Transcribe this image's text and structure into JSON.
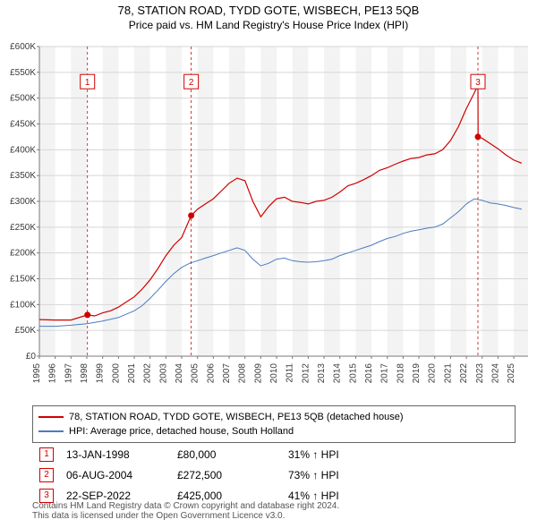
{
  "title_line1": "78, STATION ROAD, TYDD GOTE, WISBECH, PE13 5QB",
  "title_line2": "Price paid vs. HM Land Registry's House Price Index (HPI)",
  "chart": {
    "type": "line",
    "background_color": "#ffffff",
    "plot_background_bands_color": "#f3f3f3",
    "grid_color": "#e0e0e0",
    "axis_color": "#7a7a7a",
    "text_color": "#3a3a3a",
    "x_years": [
      1995,
      1996,
      1997,
      1998,
      1999,
      2000,
      2001,
      2002,
      2003,
      2004,
      2005,
      2006,
      2007,
      2008,
      2009,
      2010,
      2011,
      2012,
      2013,
      2014,
      2015,
      2016,
      2017,
      2018,
      2019,
      2020,
      2021,
      2022,
      2023,
      2024,
      2025
    ],
    "x_range": [
      1995,
      2025.9
    ],
    "xtick_step": 1,
    "xtick_fontsize": 10,
    "xtick_rotation": -90,
    "y_range": [
      0,
      600000
    ],
    "ytick_step": 50000,
    "ytick_labels": [
      "£0",
      "£50K",
      "£100K",
      "£150K",
      "£200K",
      "£250K",
      "£300K",
      "£350K",
      "£400K",
      "£450K",
      "£500K",
      "£550K",
      "£600K"
    ],
    "ytick_fontsize": 10,
    "series": [
      {
        "label": "78, STATION ROAD, TYDD GOTE, WISBECH, PE13 5QB (detached house)",
        "color": "#d00000",
        "line_width": 1.2,
        "points": [
          [
            1995.0,
            71000
          ],
          [
            1996.0,
            70000
          ],
          [
            1997.0,
            70000
          ],
          [
            1998.04,
            80000
          ],
          [
            1998.5,
            78000
          ],
          [
            1999.0,
            84000
          ],
          [
            1999.5,
            88000
          ],
          [
            2000.0,
            95000
          ],
          [
            2000.5,
            105000
          ],
          [
            2001.0,
            115000
          ],
          [
            2001.5,
            130000
          ],
          [
            2002.0,
            148000
          ],
          [
            2002.5,
            170000
          ],
          [
            2003.0,
            195000
          ],
          [
            2003.5,
            215000
          ],
          [
            2004.0,
            230000
          ],
          [
            2004.6,
            272500
          ],
          [
            2005.0,
            285000
          ],
          [
            2005.5,
            295000
          ],
          [
            2006.0,
            305000
          ],
          [
            2006.5,
            320000
          ],
          [
            2007.0,
            335000
          ],
          [
            2007.5,
            345000
          ],
          [
            2008.0,
            340000
          ],
          [
            2008.5,
            300000
          ],
          [
            2009.0,
            270000
          ],
          [
            2009.5,
            290000
          ],
          [
            2010.0,
            305000
          ],
          [
            2010.5,
            308000
          ],
          [
            2011.0,
            300000
          ],
          [
            2011.5,
            298000
          ],
          [
            2012.0,
            295000
          ],
          [
            2012.5,
            300000
          ],
          [
            2013.0,
            302000
          ],
          [
            2013.5,
            308000
          ],
          [
            2014.0,
            318000
          ],
          [
            2014.5,
            330000
          ],
          [
            2015.0,
            335000
          ],
          [
            2015.5,
            342000
          ],
          [
            2016.0,
            350000
          ],
          [
            2016.5,
            360000
          ],
          [
            2017.0,
            365000
          ],
          [
            2017.5,
            372000
          ],
          [
            2018.0,
            378000
          ],
          [
            2018.5,
            383000
          ],
          [
            2019.0,
            385000
          ],
          [
            2019.5,
            390000
          ],
          [
            2020.0,
            392000
          ],
          [
            2020.5,
            400000
          ],
          [
            2021.0,
            418000
          ],
          [
            2021.5,
            445000
          ],
          [
            2022.0,
            480000
          ],
          [
            2022.5,
            510000
          ],
          [
            2022.73,
            525000
          ],
          [
            2022.74,
            425000
          ],
          [
            2023.0,
            422000
          ],
          [
            2023.5,
            412000
          ],
          [
            2024.0,
            402000
          ],
          [
            2024.5,
            390000
          ],
          [
            2025.0,
            380000
          ],
          [
            2025.5,
            374000
          ]
        ]
      },
      {
        "label": "HPI: Average price, detached house, South Holland",
        "color": "#4a7cc0",
        "line_width": 1.0,
        "points": [
          [
            1995.0,
            58000
          ],
          [
            1996.0,
            58000
          ],
          [
            1997.0,
            60000
          ],
          [
            1998.0,
            63000
          ],
          [
            1999.0,
            68000
          ],
          [
            2000.0,
            75000
          ],
          [
            2001.0,
            88000
          ],
          [
            2001.5,
            98000
          ],
          [
            2002.0,
            112000
          ],
          [
            2002.5,
            128000
          ],
          [
            2003.0,
            145000
          ],
          [
            2003.5,
            160000
          ],
          [
            2004.0,
            172000
          ],
          [
            2004.5,
            180000
          ],
          [
            2005.0,
            185000
          ],
          [
            2005.5,
            190000
          ],
          [
            2006.0,
            195000
          ],
          [
            2006.5,
            200000
          ],
          [
            2007.0,
            205000
          ],
          [
            2007.5,
            210000
          ],
          [
            2008.0,
            205000
          ],
          [
            2008.5,
            188000
          ],
          [
            2009.0,
            175000
          ],
          [
            2009.5,
            180000
          ],
          [
            2010.0,
            188000
          ],
          [
            2010.5,
            190000
          ],
          [
            2011.0,
            185000
          ],
          [
            2011.5,
            183000
          ],
          [
            2012.0,
            182000
          ],
          [
            2012.5,
            183000
          ],
          [
            2013.0,
            185000
          ],
          [
            2013.5,
            188000
          ],
          [
            2014.0,
            195000
          ],
          [
            2014.5,
            200000
          ],
          [
            2015.0,
            205000
          ],
          [
            2015.5,
            210000
          ],
          [
            2016.0,
            215000
          ],
          [
            2016.5,
            222000
          ],
          [
            2017.0,
            228000
          ],
          [
            2017.5,
            232000
          ],
          [
            2018.0,
            238000
          ],
          [
            2018.5,
            242000
          ],
          [
            2019.0,
            245000
          ],
          [
            2019.5,
            248000
          ],
          [
            2020.0,
            250000
          ],
          [
            2020.5,
            256000
          ],
          [
            2021.0,
            268000
          ],
          [
            2021.5,
            280000
          ],
          [
            2022.0,
            295000
          ],
          [
            2022.5,
            305000
          ],
          [
            2023.0,
            302000
          ],
          [
            2023.5,
            297000
          ],
          [
            2024.0,
            295000
          ],
          [
            2024.5,
            292000
          ],
          [
            2025.0,
            288000
          ],
          [
            2025.5,
            285000
          ]
        ]
      }
    ],
    "event_markers": [
      {
        "n": "1",
        "x": 1998.04,
        "y": 80000,
        "label_y": 532000,
        "color": "#d00000"
      },
      {
        "n": "2",
        "x": 2004.6,
        "y": 272500,
        "label_y": 532000,
        "color": "#d00000"
      },
      {
        "n": "3",
        "x": 2022.73,
        "y": 425000,
        "label_y": 532000,
        "color": "#d00000"
      }
    ]
  },
  "legend": {
    "rows": [
      {
        "color": "#d00000",
        "label": "78, STATION ROAD, TYDD GOTE, WISBECH, PE13 5QB (detached house)"
      },
      {
        "color": "#4a7cc0",
        "label": "HPI: Average price, detached house, South Holland"
      }
    ]
  },
  "events_table": {
    "rows": [
      {
        "n": "1",
        "date": "13-JAN-1998",
        "price": "£80,000",
        "delta": "31% ↑ HPI"
      },
      {
        "n": "2",
        "date": "06-AUG-2004",
        "price": "£272,500",
        "delta": "73% ↑ HPI"
      },
      {
        "n": "3",
        "date": "22-SEP-2022",
        "price": "£425,000",
        "delta": "41% ↑ HPI"
      }
    ]
  },
  "footer_line1": "Contains HM Land Registry data © Crown copyright and database right 2024.",
  "footer_line2": "This data is licensed under the Open Government Licence v3.0."
}
